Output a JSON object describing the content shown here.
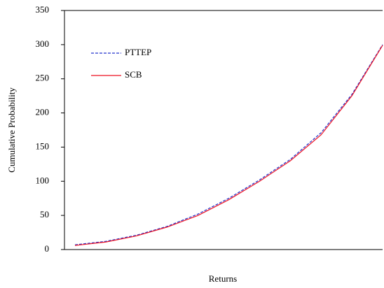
{
  "chart_data": {
    "type": "line",
    "x_label": "Returns",
    "y_label": "Cumulative Probability",
    "categories": [
      null,
      null,
      null,
      null,
      null,
      null,
      null,
      null,
      null,
      null,
      null
    ],
    "series": [
      {
        "name": "PTTEP",
        "color": "#2233cc",
        "dash": true,
        "values": [
          7,
          12,
          21,
          34,
          52,
          75,
          102,
          132,
          171,
          227,
          300
        ]
      },
      {
        "name": "SCB",
        "color": "#ee1122",
        "dash": false,
        "values": [
          6,
          11,
          20,
          33,
          50,
          73,
          100,
          130,
          168,
          225,
          299
        ]
      }
    ],
    "ylim": [
      0,
      350
    ],
    "yticks": [
      0,
      50,
      100,
      150,
      200,
      250,
      300,
      350
    ],
    "legend": "upper-left"
  }
}
